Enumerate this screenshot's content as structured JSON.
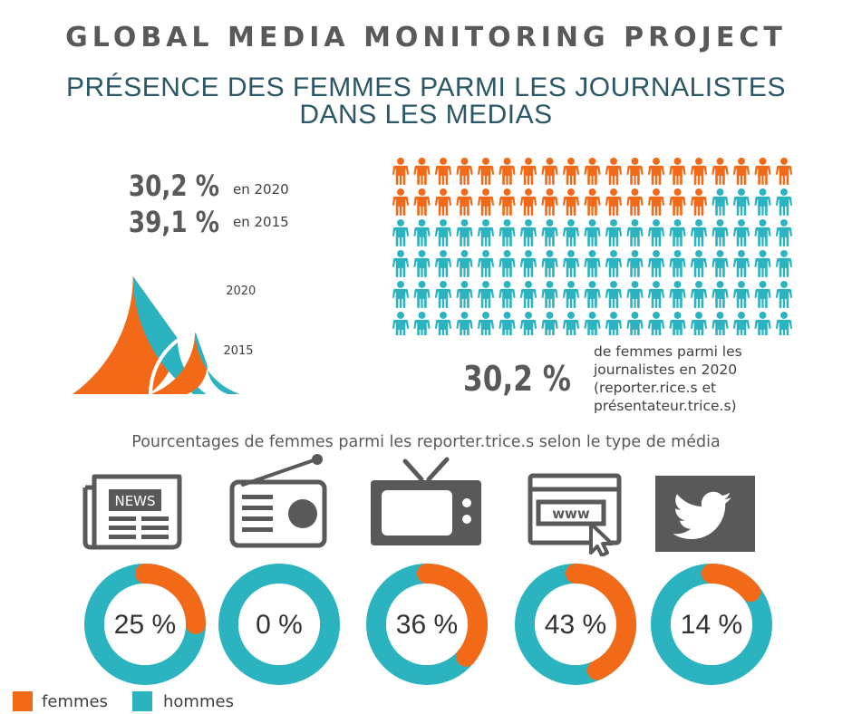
{
  "header": {
    "title": "GLOBAL MEDIA MONITORING PROJECT",
    "subtitle_line1": "PRÉSENCE DES FEMMES PARMI LES JOURNALISTES",
    "subtitle_line2": "DANS LES MEDIAS"
  },
  "summary": {
    "value_2020": "30,2 %",
    "label_2020": "en 2020",
    "value_2015": "39,1 %",
    "label_2015": "en 2015",
    "big_stat": "30,2 %",
    "big_stat_desc": [
      "de femmes parmi les",
      "journalistes en 2020",
      "(reporter.rice.s et",
      "présentateur.trice.s)"
    ]
  },
  "section_title": "Pourcentages de femmes parmi les reporter.trice.s selon le type de média",
  "legend": {
    "women": "femmes",
    "men": "hommes"
  },
  "colors": {
    "women": "#f26a18",
    "men": "#2bb3c0",
    "icon": "#595959",
    "heading": "#595959",
    "subtitle": "#2c5866"
  },
  "media_icons": [
    "newspaper-icon",
    "radio-icon",
    "tv-icon",
    "web-icon",
    "twitter-icon"
  ],
  "chart_data": [
    {
      "type": "pie",
      "variant": "semicircle-nested",
      "labels": [
        "femmes",
        "hommes"
      ],
      "rings": [
        {
          "name": "2020",
          "values": [
            30.2,
            69.8
          ]
        },
        {
          "name": "2015",
          "values": [
            39.1,
            60.9
          ]
        }
      ]
    },
    {
      "type": "pictogram",
      "labels": [
        "femmes",
        "hommes"
      ],
      "rows": 6,
      "columns": 19,
      "women_fraction": 0.302
    },
    {
      "type": "pie",
      "variant": "donut",
      "categories": [
        "newspaper",
        "radio",
        "tv",
        "web",
        "twitter"
      ],
      "labels": [
        "25 %",
        "0 %",
        "36 %",
        "43 %",
        "14 %"
      ],
      "values": [
        25,
        0,
        36,
        43,
        14
      ]
    }
  ]
}
